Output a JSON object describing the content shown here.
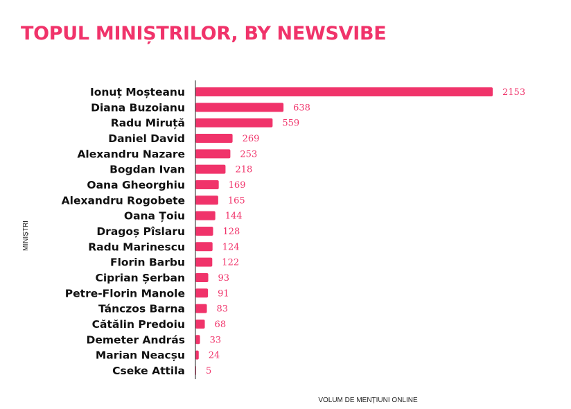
{
  "colors": {
    "accent": "#f0336a",
    "axis": "#222222"
  },
  "chart_data": {
    "type": "bar",
    "orientation": "horizontal",
    "title": "TOPUL MINIȘTRILOR, BY NEWSVIBE",
    "xlabel": "VOLUM DE MENȚIUNI ONLINE",
    "ylabel": "MINIȘTRI",
    "xlim": [
      0,
      2153
    ],
    "grid": false,
    "data_labels": true,
    "categories": [
      "Ionuț Moșteanu",
      "Diana Buzoianu",
      "Radu Miruță",
      "Daniel David",
      "Alexandru Nazare",
      "Bogdan Ivan",
      "Oana Gheorghiu",
      "Alexandru Rogobete",
      "Oana Țoiu",
      "Dragoș Pîslaru",
      "Radu Marinescu",
      "Florin Barbu",
      "Ciprian Șerban",
      "Petre-Florin Manole",
      "Tánczos Barna",
      "Cătălin Predoiu",
      "Demeter András",
      "Marian Neacșu",
      "Cseke Attila"
    ],
    "values": [
      2153,
      638,
      559,
      269,
      253,
      218,
      169,
      165,
      144,
      128,
      124,
      122,
      93,
      91,
      83,
      68,
      33,
      24,
      5
    ]
  }
}
